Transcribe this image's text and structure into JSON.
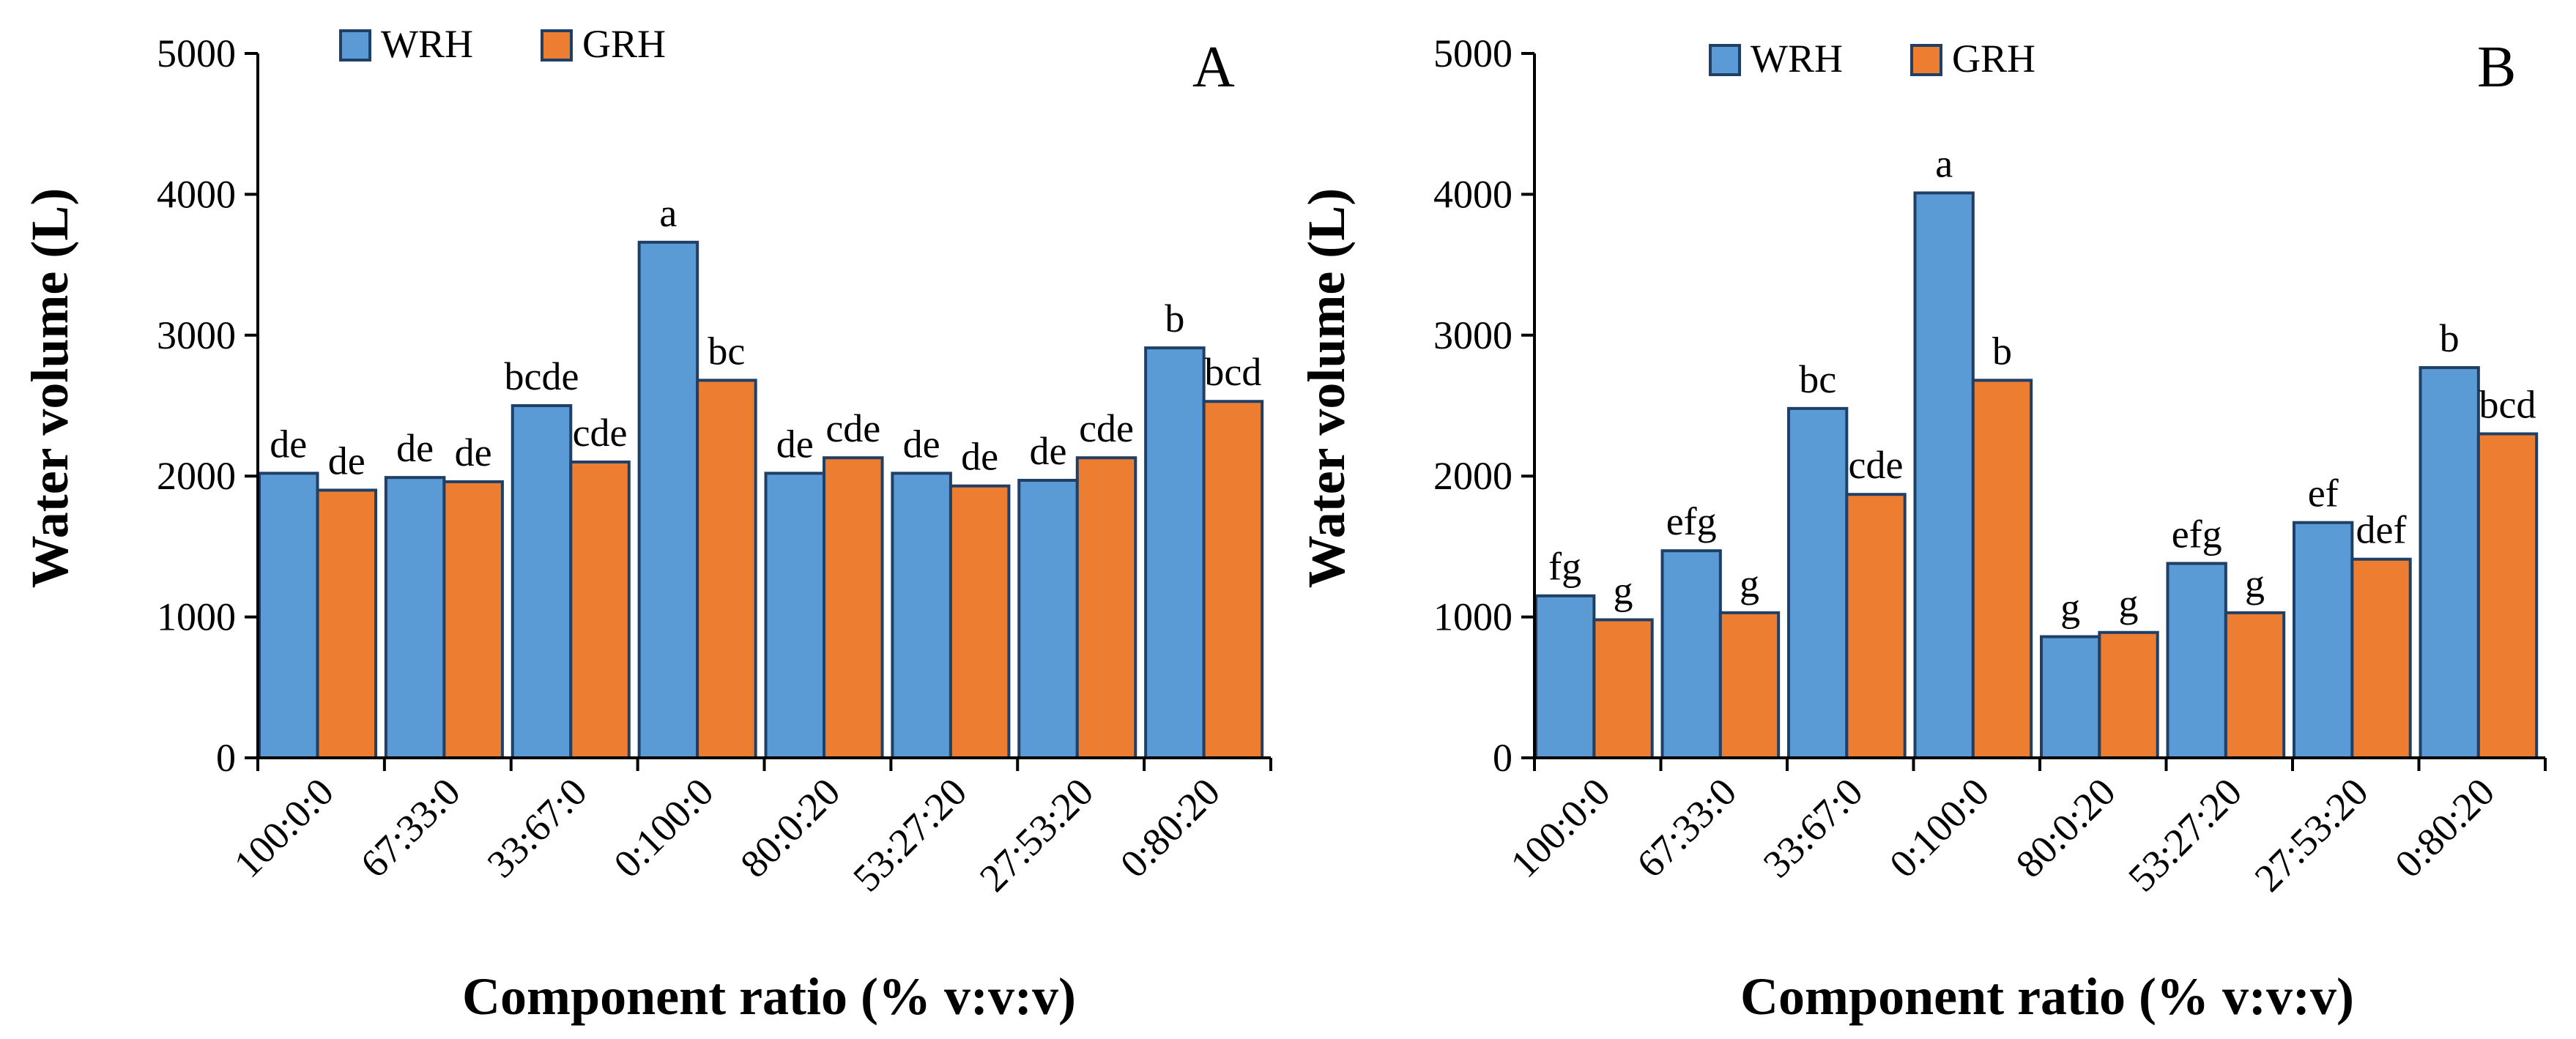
{
  "colors": {
    "wrh_fill": "#5b9bd5",
    "grh_fill": "#ed7d31",
    "bar_stroke": "#1f3f66",
    "axis": "#000000"
  },
  "chart_data": [
    {
      "type": "bar",
      "panel": "A",
      "title": "",
      "xlabel": "Component ratio (% v:v:v)",
      "ylabel": "Water volume (L)",
      "ylim": [
        0,
        5000
      ],
      "yticks": [
        0,
        1000,
        2000,
        3000,
        4000,
        5000
      ],
      "categories": [
        "100:0:0",
        "67:33:0",
        "33:67:0",
        "0:100:0",
        "80:0:20",
        "53:27:20",
        "27:53:20",
        "0:80:20"
      ],
      "legend": [
        "WRH",
        "GRH"
      ],
      "legend_position": "top-left",
      "grid": false,
      "series": [
        {
          "name": "WRH",
          "values": [
            2020,
            1990,
            2500,
            3660,
            2020,
            2020,
            1970,
            2910
          ],
          "labels": [
            "de",
            "de",
            "bcde",
            "a",
            "de",
            "de",
            "de",
            "b"
          ]
        },
        {
          "name": "GRH",
          "values": [
            1900,
            1960,
            2100,
            2680,
            2130,
            1930,
            2130,
            2530
          ],
          "labels": [
            "de",
            "de",
            "cde",
            "bc",
            "cde",
            "de",
            "cde",
            "bcd"
          ]
        }
      ]
    },
    {
      "type": "bar",
      "panel": "B",
      "title": "",
      "xlabel": "Component ratio (% v:v:v)",
      "ylabel": "Water volume (L)",
      "ylim": [
        0,
        5000
      ],
      "yticks": [
        0,
        1000,
        2000,
        3000,
        4000,
        5000
      ],
      "categories": [
        "100:0:0",
        "67:33:0",
        "33:67:0",
        "0:100:0",
        "80:0:20",
        "53:27:20",
        "27:53:20",
        "0:80:20"
      ],
      "legend": [
        "WRH",
        "GRH"
      ],
      "legend_position": "top-left",
      "grid": false,
      "series": [
        {
          "name": "WRH",
          "values": [
            1150,
            1470,
            2480,
            4010,
            860,
            1380,
            1670,
            2770
          ],
          "labels": [
            "fg",
            "efg",
            "bc",
            "a",
            "g",
            "efg",
            "ef",
            "b"
          ]
        },
        {
          "name": "GRH",
          "values": [
            980,
            1030,
            1870,
            2680,
            890,
            1030,
            1410,
            2300
          ],
          "labels": [
            "g",
            "g",
            "cde",
            "b",
            "g",
            "g",
            "def",
            "bcd"
          ]
        }
      ]
    }
  ]
}
